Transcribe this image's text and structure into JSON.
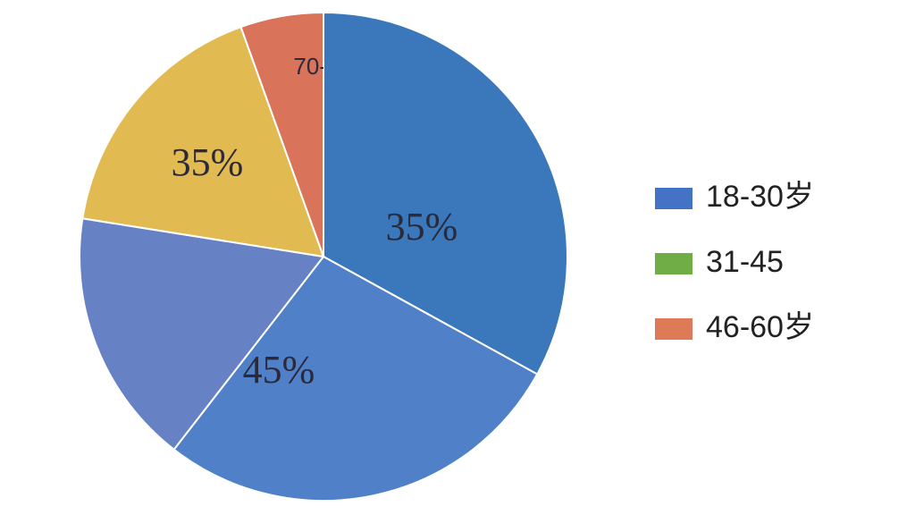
{
  "chart_data": {
    "type": "pie",
    "values": [
      33,
      27.5,
      17,
      17,
      5.5
    ],
    "colors": [
      "#3a77bb",
      "#4f80c8",
      "#6682c4",
      "#e2ba52",
      "#d9735a"
    ],
    "annotations": [
      "35%",
      "45%",
      "35%",
      "70-"
    ],
    "legend": [
      {
        "name": "18-30岁",
        "color": "#4472c4"
      },
      {
        "name": "31-45",
        "color": "#70ad47"
      },
      {
        "name": "46-60岁",
        "color": "#dd7a57"
      }
    ],
    "legend_position": "right"
  }
}
